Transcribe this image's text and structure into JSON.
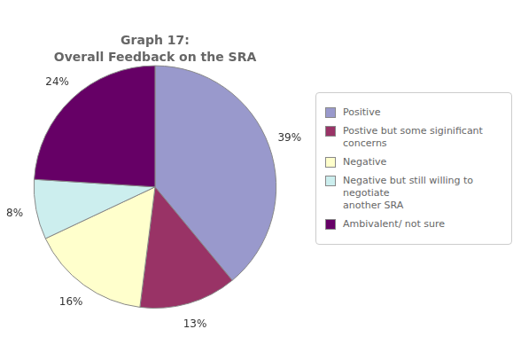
{
  "chart_data": {
    "type": "pie",
    "title": "Graph 17:",
    "subtitle": "Overall Feedback on the SRA",
    "categories": [
      "Positive",
      "Postive but some siginificant\nconcerns",
      "Negative",
      "Negative but still willing to negotiate\nanother SRA",
      "Ambivalent/ not sure"
    ],
    "values": [
      39,
      13,
      16,
      8,
      24
    ],
    "value_labels": [
      "39%",
      "13%",
      "16%",
      "8%",
      "24%"
    ],
    "data_labels": true,
    "colors": [
      "#9999cc",
      "#993366",
      "#ffffcc",
      "#cceeee",
      "#660066"
    ],
    "legend": "right"
  }
}
